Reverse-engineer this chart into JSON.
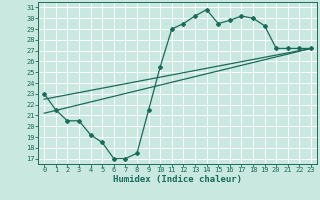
{
  "title": "",
  "xlabel": "Humidex (Indice chaleur)",
  "bg_color": "#c8e8e0",
  "grid_color": "#ffffff",
  "line_color": "#1a6b5a",
  "xlim": [
    -0.5,
    23.5
  ],
  "ylim": [
    16.5,
    31.5
  ],
  "xticks": [
    0,
    1,
    2,
    3,
    4,
    5,
    6,
    7,
    8,
    9,
    10,
    11,
    12,
    13,
    14,
    15,
    16,
    17,
    18,
    19,
    20,
    21,
    22,
    23
  ],
  "yticks": [
    17,
    18,
    19,
    20,
    21,
    22,
    23,
    24,
    25,
    26,
    27,
    28,
    29,
    30,
    31
  ],
  "curve1_x": [
    0,
    1,
    2,
    3,
    4,
    5,
    6,
    7,
    8,
    9,
    10,
    11,
    12,
    13,
    14,
    15,
    16,
    17,
    18,
    19,
    20,
    21,
    22,
    23
  ],
  "curve1_y": [
    23.0,
    21.5,
    20.5,
    20.5,
    19.2,
    18.5,
    17.0,
    17.0,
    17.5,
    21.5,
    25.5,
    29.0,
    29.5,
    30.2,
    30.8,
    29.5,
    29.8,
    30.2,
    30.0,
    29.3,
    27.2,
    27.2,
    27.2,
    27.2
  ],
  "curve2_x": [
    0,
    23
  ],
  "curve2_y": [
    22.5,
    27.2
  ],
  "curve3_x": [
    0,
    23
  ],
  "curve3_y": [
    21.2,
    27.2
  ]
}
